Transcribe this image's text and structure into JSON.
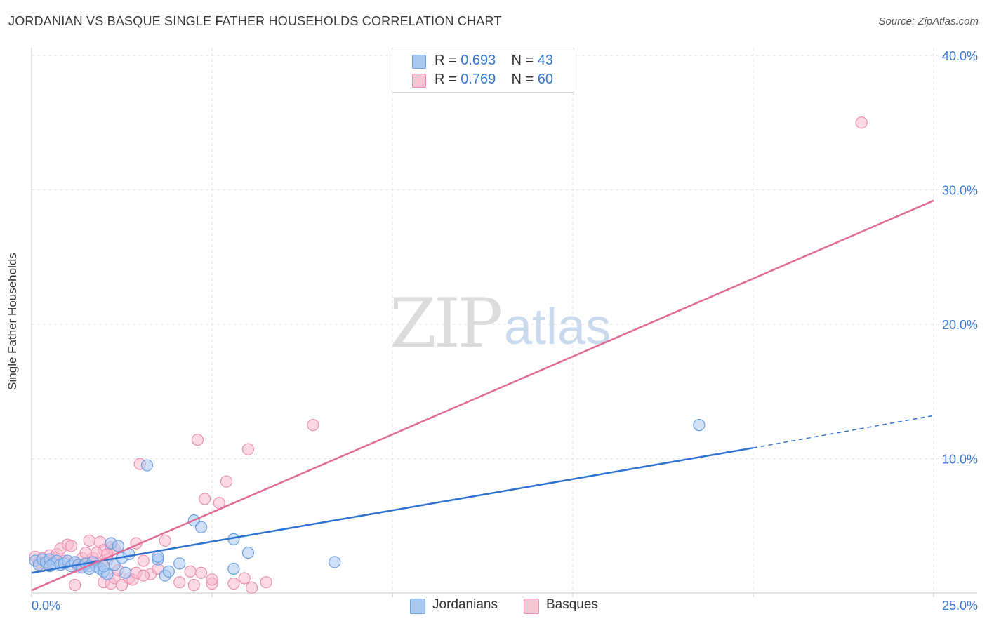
{
  "header": {
    "title": "JORDANIAN VS BASQUE SINGLE FATHER HOUSEHOLDS CORRELATION CHART",
    "source": "Source: ZipAtlas.com"
  },
  "watermark": {
    "zip": "ZIP",
    "atlas": "atlas"
  },
  "legend": {
    "rows": [
      {
        "r_label": "R = ",
        "r_value": "0.693",
        "n_label": "N = ",
        "n_value": "43",
        "color": "#a9c8f0",
        "border": "#6fa0e0"
      },
      {
        "r_label": "R = ",
        "r_value": "0.769",
        "n_label": "N = ",
        "n_value": "60",
        "color": "#f9c4d4",
        "border": "#ee8fae"
      }
    ]
  },
  "bottom_legend": {
    "series1": "Jordanians",
    "series2": "Basques"
  },
  "colors": {
    "blue_fill": "#a9c8f0",
    "blue_stroke": "#6d9fdf",
    "blue_line": "#2f72d0",
    "pink_fill": "#f8bcd0",
    "pink_stroke": "#ec8fb0",
    "pink_line": "#e06b96",
    "tick_color": "#3a78d4"
  },
  "chart_data": {
    "type": "scatter",
    "title": "JORDANIAN VS BASQUE SINGLE FATHER HOUSEHOLDS CORRELATION CHART",
    "xlabel": "",
    "ylabel": "Single Father Households",
    "xlim": [
      0,
      25
    ],
    "ylim": [
      0,
      40
    ],
    "x_tick_labels": [
      "0.0%",
      "25.0%"
    ],
    "y_ticks": [
      10,
      20,
      30,
      40
    ],
    "y_tick_labels": [
      "10.0%",
      "20.0%",
      "30.0%",
      "40.0%"
    ],
    "grid": true,
    "series": [
      {
        "name": "Jordanians",
        "r": 0.693,
        "n": 43,
        "trend": {
          "x0": 0,
          "y0": 1.5,
          "x1": 20,
          "y1": 10.8,
          "dashed_to_x": 25,
          "dashed_to_y": 13.2
        },
        "points": [
          [
            0.1,
            2.4
          ],
          [
            0.2,
            2.1
          ],
          [
            0.3,
            2.5
          ],
          [
            0.4,
            2.3
          ],
          [
            0.5,
            2.5
          ],
          [
            0.6,
            2.2
          ],
          [
            0.7,
            2.4
          ],
          [
            0.8,
            2.1
          ],
          [
            0.9,
            2.2
          ],
          [
            1.0,
            2.4
          ],
          [
            1.1,
            2.0
          ],
          [
            1.2,
            2.3
          ],
          [
            1.3,
            2.1
          ],
          [
            1.4,
            1.9
          ],
          [
            1.5,
            2.2
          ],
          [
            1.6,
            2.0
          ],
          [
            1.7,
            2.3
          ],
          [
            1.8,
            2.0
          ],
          [
            1.9,
            1.8
          ],
          [
            2.0,
            1.6
          ],
          [
            2.1,
            1.4
          ],
          [
            2.2,
            3.7
          ],
          [
            2.3,
            2.1
          ],
          [
            2.4,
            3.5
          ],
          [
            2.5,
            2.6
          ],
          [
            2.6,
            1.5
          ],
          [
            2.7,
            2.9
          ],
          [
            3.2,
            9.5
          ],
          [
            3.5,
            2.5
          ],
          [
            3.5,
            2.7
          ],
          [
            3.7,
            1.3
          ],
          [
            3.8,
            1.6
          ],
          [
            4.1,
            2.2
          ],
          [
            4.5,
            5.4
          ],
          [
            4.7,
            4.9
          ],
          [
            5.6,
            4.0
          ],
          [
            5.6,
            1.8
          ],
          [
            6.0,
            3.0
          ],
          [
            8.4,
            2.3
          ],
          [
            18.5,
            12.5
          ],
          [
            1.6,
            1.8
          ],
          [
            0.5,
            2.0
          ],
          [
            2.0,
            2.0
          ]
        ]
      },
      {
        "name": "Basques",
        "r": 0.769,
        "n": 60,
        "trend": {
          "x0": 0,
          "y0": 0.2,
          "x1": 25,
          "y1": 29.2
        },
        "points": [
          [
            0.1,
            2.7
          ],
          [
            0.2,
            2.3
          ],
          [
            0.3,
            2.6
          ],
          [
            0.4,
            2.2
          ],
          [
            0.5,
            2.8
          ],
          [
            0.6,
            2.5
          ],
          [
            0.7,
            2.9
          ],
          [
            0.8,
            3.3
          ],
          [
            0.9,
            2.4
          ],
          [
            1.0,
            3.6
          ],
          [
            1.1,
            3.5
          ],
          [
            1.2,
            2.3
          ],
          [
            1.3,
            1.9
          ],
          [
            1.4,
            2.6
          ],
          [
            1.5,
            2.1
          ],
          [
            1.6,
            3.9
          ],
          [
            1.7,
            2.6
          ],
          [
            1.8,
            2.3
          ],
          [
            1.9,
            3.8
          ],
          [
            2.0,
            3.2
          ],
          [
            2.1,
            2.5
          ],
          [
            2.2,
            3.4
          ],
          [
            2.3,
            3.3
          ],
          [
            2.0,
            0.8
          ],
          [
            2.2,
            0.7
          ],
          [
            2.3,
            1.1
          ],
          [
            2.4,
            1.7
          ],
          [
            2.5,
            0.6
          ],
          [
            2.7,
            1.1
          ],
          [
            2.8,
            1.0
          ],
          [
            2.9,
            3.7
          ],
          [
            3.0,
            9.6
          ],
          [
            3.1,
            2.4
          ],
          [
            3.3,
            1.4
          ],
          [
            3.5,
            1.8
          ],
          [
            3.7,
            3.9
          ],
          [
            4.1,
            0.8
          ],
          [
            4.4,
            1.6
          ],
          [
            4.5,
            0.6
          ],
          [
            4.6,
            11.4
          ],
          [
            4.7,
            1.5
          ],
          [
            4.8,
            7.0
          ],
          [
            5.0,
            0.7
          ],
          [
            5.0,
            1.0
          ],
          [
            5.2,
            6.7
          ],
          [
            5.4,
            8.3
          ],
          [
            5.6,
            0.7
          ],
          [
            5.9,
            1.1
          ],
          [
            6.0,
            10.7
          ],
          [
            6.1,
            0.4
          ],
          [
            6.5,
            0.8
          ],
          [
            7.8,
            12.5
          ],
          [
            23.0,
            35.0
          ],
          [
            1.2,
            0.6
          ],
          [
            1.5,
            3.0
          ],
          [
            0.3,
            2.0
          ],
          [
            2.9,
            1.5
          ],
          [
            2.1,
            2.9
          ],
          [
            3.1,
            1.3
          ],
          [
            1.8,
            3.0
          ]
        ]
      }
    ]
  }
}
